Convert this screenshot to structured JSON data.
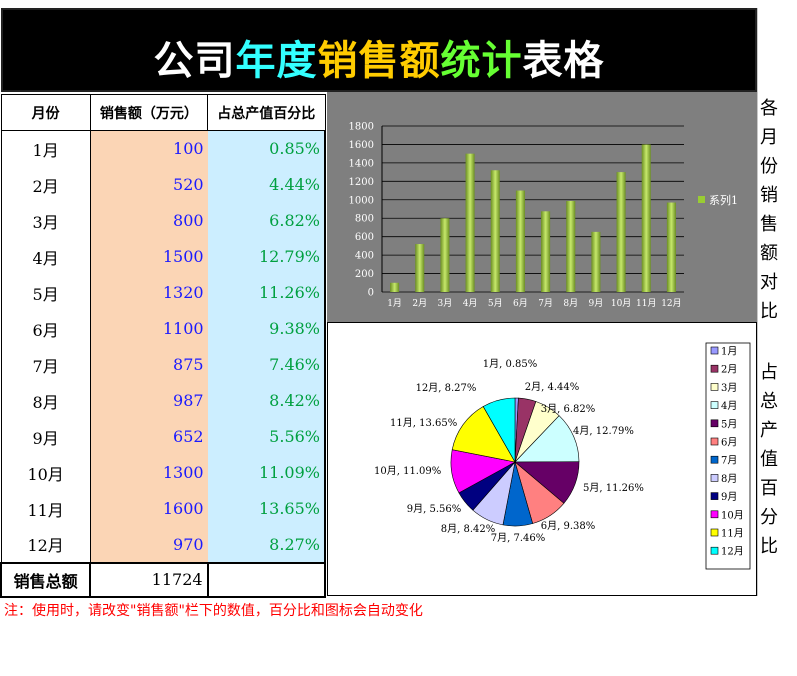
{
  "title": {
    "segments": [
      {
        "text": "公司",
        "color": "#ffffff"
      },
      {
        "text": "年度",
        "color": "#33ffff"
      },
      {
        "text": "销售额",
        "color": "#ffcc00"
      },
      {
        "text": "统计",
        "color": "#66ff33"
      },
      {
        "text": "表格",
        "color": "#ffffff"
      }
    ]
  },
  "table": {
    "headers": [
      "月份",
      "销售额（万元）",
      "占总产值百分比"
    ],
    "rows": [
      {
        "month": "1月",
        "value": "100",
        "pct": "0.85%"
      },
      {
        "month": "2月",
        "value": "520",
        "pct": "4.44%"
      },
      {
        "month": "3月",
        "value": "800",
        "pct": "6.82%"
      },
      {
        "month": "4月",
        "value": "1500",
        "pct": "12.79%"
      },
      {
        "month": "5月",
        "value": "1320",
        "pct": "11.26%"
      },
      {
        "month": "6月",
        "value": "1100",
        "pct": "9.38%"
      },
      {
        "month": "7月",
        "value": "875",
        "pct": "7.46%"
      },
      {
        "month": "8月",
        "value": "987",
        "pct": "8.42%"
      },
      {
        "month": "9月",
        "value": "652",
        "pct": "5.56%"
      },
      {
        "month": "10月",
        "value": "1300",
        "pct": "11.09%"
      },
      {
        "month": "11月",
        "value": "1600",
        "pct": "13.65%"
      },
      {
        "month": "12月",
        "value": "970",
        "pct": "8.27%"
      }
    ],
    "total_label": "销售总额",
    "total_value": "11724"
  },
  "side_captions": {
    "bar": [
      "各",
      "月",
      "份",
      "销",
      "售",
      "额",
      "对",
      "比"
    ],
    "pie": [
      "占",
      "总",
      "产",
      "值",
      "百",
      "分",
      "比"
    ]
  },
  "note": "注：使用时，请改变\"销售额\"栏下的数值，百分比和图标会自动变化",
  "chart_data": [
    {
      "type": "bar",
      "categories": [
        "1月",
        "2月",
        "3月",
        "4月",
        "5月",
        "6月",
        "7月",
        "8月",
        "9月",
        "10月",
        "11月",
        "12月"
      ],
      "series": [
        {
          "name": "系列1",
          "values": [
            100,
            520,
            800,
            1500,
            1320,
            1100,
            875,
            987,
            652,
            1300,
            1600,
            970
          ],
          "color": "#99cc33"
        }
      ],
      "ylim": [
        0,
        1800
      ],
      "yticks": [
        0,
        200,
        400,
        600,
        800,
        1000,
        1200,
        1400,
        1600,
        1800
      ],
      "grid": true,
      "legend": "right",
      "background": "#7f7f7f"
    },
    {
      "type": "pie",
      "categories": [
        "1月",
        "2月",
        "3月",
        "4月",
        "5月",
        "6月",
        "7月",
        "8月",
        "9月",
        "10月",
        "11月",
        "12月"
      ],
      "values": [
        100,
        520,
        800,
        1500,
        1320,
        1100,
        875,
        987,
        652,
        1300,
        1600,
        970
      ],
      "labels": [
        "1月, 0.85%",
        "2月, 4.44%",
        "3月, 6.82%",
        "4月, 12.79%",
        "5月, 11.26%",
        "6月, 9.38%",
        "7月, 7.46%",
        "8月, 8.42%",
        "9月, 5.56%",
        "10月, 11.09%",
        "11月, 13.65%",
        "12月, 8.27%"
      ],
      "colors": [
        "#9999ff",
        "#993366",
        "#ffffcc",
        "#ccffff",
        "#660066",
        "#ff8080",
        "#0066cc",
        "#ccccff",
        "#000080",
        "#ff00ff",
        "#ffff00",
        "#00ffff"
      ],
      "legend": "right"
    }
  ]
}
